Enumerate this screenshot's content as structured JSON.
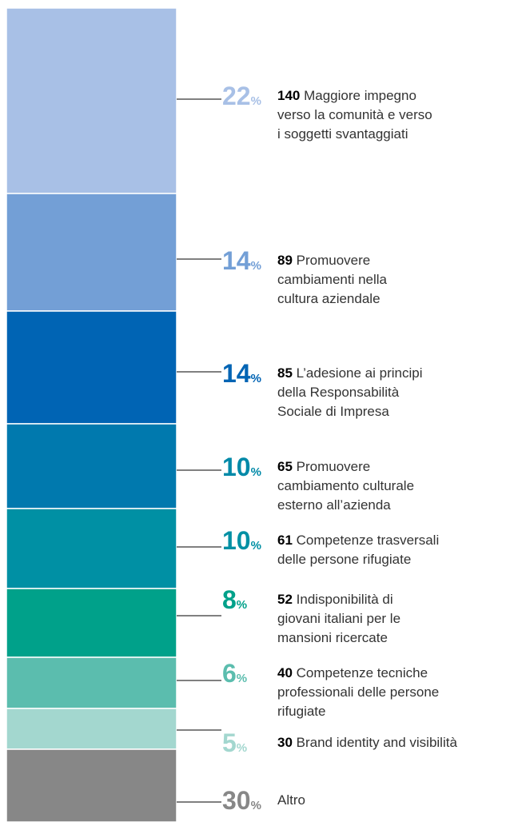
{
  "chart_data": {
    "type": "bar",
    "layout": "stacked-single-column",
    "total_percent_sign": "%",
    "segments": [
      {
        "percent": 22,
        "count": "140",
        "lines": [
          "Maggiore impegno",
          "verso la comunità e verso",
          "i soggetti svantaggiati"
        ],
        "color": "#a8c0e6",
        "pct_color": "#a8c0e6"
      },
      {
        "percent": 14,
        "count": "89",
        "lines": [
          "Promuovere",
          "cambiamenti nella",
          "cultura aziendale"
        ],
        "color": "#739fd6",
        "pct_color": "#739fd6"
      },
      {
        "percent": 14,
        "count": "85",
        "lines": [
          "L’adesione ai principi",
          "della Responsabilità",
          "Sociale di Impresa"
        ],
        "color": "#0064b4",
        "pct_color": "#0064b4"
      },
      {
        "percent": 10,
        "count": "65",
        "lines": [
          "Promuovere",
          "cambiamento culturale",
          "esterno all’azienda"
        ],
        "color": "#0079ae",
        "pct_color": "#0089a8"
      },
      {
        "percent": 10,
        "count": "61",
        "lines": [
          "Competenze trasversali",
          "delle persone rifugiate"
        ],
        "color": "#0090a4",
        "pct_color": "#0090a4"
      },
      {
        "percent": 8,
        "count": "52",
        "lines": [
          "Indisponibilità di",
          "giovani italiani per le",
          "mansioni ricercate"
        ],
        "color": "#00a18a",
        "pct_color": "#00a18a"
      },
      {
        "percent": 6,
        "count": "40",
        "lines": [
          "Competenze tecniche",
          "professionali delle persone",
          "rifugiate"
        ],
        "color": "#5bbdae",
        "pct_color": "#5bbdae"
      },
      {
        "percent": 5,
        "count": "30",
        "lines": [
          "Brand identity and visibilità"
        ],
        "color": "#a3d7cf",
        "pct_color": "#a3d7cf"
      },
      {
        "percent": 30,
        "count": "",
        "lines": [
          "Altro"
        ],
        "color": "#878787",
        "pct_color": "#878787"
      }
    ]
  }
}
